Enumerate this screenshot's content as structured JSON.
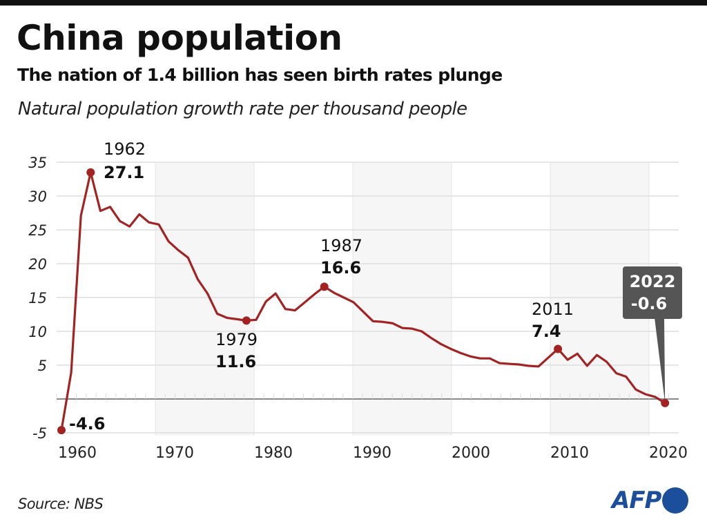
{
  "header": {
    "title": "China population",
    "subtitle": "The nation of 1.4 billion has seen birth rates plunge",
    "unit": "Natural population growth rate per thousand people"
  },
  "footer": {
    "source": "Source: NBS",
    "logo": "AFP"
  },
  "colors": {
    "line": "#a32322",
    "callout_bg": "#555555",
    "logo": "#1b4f9c"
  },
  "chart_data": {
    "type": "line",
    "title": "China population",
    "xlabel": "",
    "ylabel": "Natural population growth rate per thousand people",
    "xlim": [
      1959,
      2022
    ],
    "ylim": [
      -5,
      35
    ],
    "grid": true,
    "y_ticks": [
      "35",
      "30",
      "25",
      "20",
      "15",
      "10",
      "5",
      "-5"
    ],
    "y_tick_values": [
      35,
      30,
      25,
      20,
      15,
      10,
      5,
      -5
    ],
    "x_ticks": [
      "1960",
      "1970",
      "1980",
      "1990",
      "2000",
      "2010",
      "2020"
    ],
    "x_tick_values": [
      1960,
      1970,
      1980,
      1990,
      2000,
      2010,
      2020
    ],
    "series": [
      {
        "name": "Natural population growth rate",
        "x": [
          1960,
          1961,
          1962,
          1963,
          1964,
          1965,
          1966,
          1967,
          1968,
          1969,
          1970,
          1971,
          1972,
          1973,
          1974,
          1975,
          1976,
          1977,
          1978,
          1979,
          1980,
          1981,
          1982,
          1983,
          1984,
          1985,
          1986,
          1987,
          1988,
          1989,
          1990,
          1991,
          1992,
          1993,
          1994,
          1995,
          1996,
          1997,
          1998,
          1999,
          2000,
          2001,
          2002,
          2003,
          2004,
          2005,
          2006,
          2007,
          2008,
          2009,
          2010,
          2011,
          2012,
          2013,
          2014,
          2015,
          2016,
          2017,
          2018,
          2019,
          2020,
          2021,
          2022
        ],
        "values": [
          -4.6,
          3.9,
          27.1,
          33.5,
          27.8,
          28.4,
          26.3,
          25.5,
          27.3,
          26.1,
          25.8,
          23.3,
          22.0,
          20.9,
          17.7,
          15.6,
          12.6,
          12.0,
          11.8,
          11.6,
          11.7,
          14.4,
          15.6,
          13.3,
          13.1,
          14.3,
          15.5,
          16.6,
          15.7,
          15.0,
          14.3,
          12.9,
          11.5,
          11.4,
          11.2,
          10.5,
          10.4,
          10.0,
          9.0,
          8.1,
          7.4,
          6.8,
          6.3,
          6.0,
          6.0,
          5.3,
          5.2,
          5.1,
          4.9,
          4.8,
          6.1,
          7.4,
          5.8,
          6.7,
          4.9,
          6.5,
          5.5,
          3.8,
          3.3,
          1.4,
          0.7,
          0.3,
          -0.6
        ]
      }
    ],
    "annotations": [
      {
        "year": "1962",
        "value": "27.1"
      },
      {
        "year": "1979",
        "value": "11.6"
      },
      {
        "year": "1987",
        "value": "16.6"
      },
      {
        "year": "2011",
        "value": "7.4"
      },
      {
        "year": "",
        "value": "-4.6"
      },
      {
        "year": "2022",
        "value": "-0.6",
        "style": "callout"
      }
    ],
    "shaded_decades": [
      [
        1970,
        1980
      ],
      [
        1990,
        2000
      ],
      [
        2010,
        2020
      ]
    ]
  }
}
